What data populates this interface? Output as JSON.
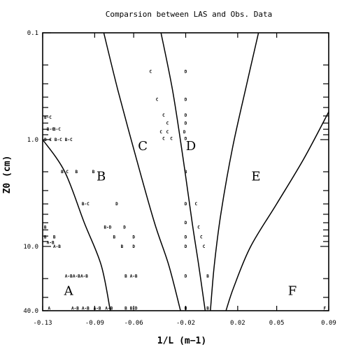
{
  "chart_data": {
    "type": "scatter",
    "title": "Comparsion between LAS and Obs. Data",
    "xlabel": "1/L (m−1)",
    "ylabel": "Z0 (cm)",
    "x_ticks": [
      {
        "value": -0.13,
        "label": "-0.13"
      },
      {
        "value": -0.09,
        "label": "-0.09"
      },
      {
        "value": -0.06,
        "label": "-0.06"
      },
      {
        "value": -0.02,
        "label": "-0.02"
      },
      {
        "value": 0.02,
        "label": "0.02"
      },
      {
        "value": 0.05,
        "label": "0.05"
      },
      {
        "value": 0.09,
        "label": "0.09"
      }
    ],
    "y_ticks": [
      {
        "value": 0.1,
        "label": "0.1"
      },
      {
        "value": 1.0,
        "label": "1.0"
      },
      {
        "value": 10.0,
        "label": "10.0"
      },
      {
        "value": 40.0,
        "label": "40.0"
      }
    ],
    "xlim": [
      -0.13,
      0.09
    ],
    "ylim": [
      0.1,
      40.0
    ],
    "y_scale": "log",
    "regions": [
      {
        "label": "A",
        "x": -0.11,
        "y": 26.0
      },
      {
        "label": "B",
        "x": -0.085,
        "y": 2.2
      },
      {
        "label": "C",
        "x": -0.053,
        "y": 1.15
      },
      {
        "label": "D",
        "x": -0.016,
        "y": 1.15
      },
      {
        "label": "E",
        "x": 0.034,
        "y": 2.2
      },
      {
        "label": "F",
        "x": 0.062,
        "y": 26.0
      }
    ],
    "boundaries": [
      {
        "name": "A-B",
        "points": [
          [
            -0.13,
            1.0
          ],
          [
            -0.113,
            2.0
          ],
          [
            -0.098,
            6.0
          ],
          [
            -0.085,
            15.0
          ],
          [
            -0.078,
            40.0
          ]
        ]
      },
      {
        "name": "B-C",
        "points": [
          [
            -0.083,
            0.1
          ],
          [
            -0.072,
            0.35
          ],
          [
            -0.058,
            1.5
          ],
          [
            -0.044,
            6.0
          ],
          [
            -0.033,
            15.0
          ],
          [
            -0.024,
            40.0
          ]
        ]
      },
      {
        "name": "C-D",
        "points": [
          [
            -0.039,
            0.1
          ],
          [
            -0.03,
            0.35
          ],
          [
            -0.022,
            1.5
          ],
          [
            -0.015,
            6.0
          ],
          [
            -0.01,
            15.0
          ],
          [
            -0.005,
            40.0
          ]
        ]
      },
      {
        "name": "D-E",
        "points": [
          [
            0.036,
            0.1
          ],
          [
            0.027,
            0.3
          ],
          [
            0.016,
            1.2
          ],
          [
            0.007,
            5.0
          ],
          [
            0.002,
            15.0
          ],
          [
            -0.001,
            40.0
          ]
        ]
      },
      {
        "name": "E-F",
        "points": [
          [
            0.09,
            0.55
          ],
          [
            0.071,
            1.5
          ],
          [
            0.05,
            4.0
          ],
          [
            0.03,
            10.0
          ],
          [
            0.017,
            24.0
          ],
          [
            0.011,
            40.0
          ]
        ]
      }
    ],
    "points": [
      {
        "label": "C",
        "x": -0.047,
        "y": 0.23
      },
      {
        "label": "D",
        "x": -0.02,
        "y": 0.23
      },
      {
        "label": "C",
        "x": -0.042,
        "y": 0.42
      },
      {
        "label": "D",
        "x": -0.02,
        "y": 0.42
      },
      {
        "label": "C",
        "x": -0.037,
        "y": 0.59
      },
      {
        "label": "D",
        "x": -0.02,
        "y": 0.59
      },
      {
        "label": "C",
        "x": -0.034,
        "y": 0.7
      },
      {
        "label": "D",
        "x": -0.02,
        "y": 0.7
      },
      {
        "label": "C",
        "x": -0.039,
        "y": 0.85
      },
      {
        "label": "C",
        "x": -0.034,
        "y": 0.85
      },
      {
        "label": "D",
        "x": -0.021,
        "y": 0.85
      },
      {
        "label": "C",
        "x": -0.037,
        "y": 0.98
      },
      {
        "label": "C",
        "x": -0.031,
        "y": 0.98
      },
      {
        "label": "D",
        "x": -0.02,
        "y": 0.98
      },
      {
        "label": "B-C",
        "x": -0.126,
        "y": 0.62
      },
      {
        "label": "B-C",
        "x": -0.124,
        "y": 0.8
      },
      {
        "label": "B-C",
        "x": -0.119,
        "y": 0.8
      },
      {
        "label": "B-C",
        "x": -0.126,
        "y": 1.0
      },
      {
        "label": "B-C",
        "x": -0.118,
        "y": 1.0
      },
      {
        "label": "B-C",
        "x": -0.11,
        "y": 1.0
      },
      {
        "label": "B-C",
        "x": -0.113,
        "y": 2.0
      },
      {
        "label": "B",
        "x": -0.104,
        "y": 2.0
      },
      {
        "label": "B",
        "x": -0.091,
        "y": 2.0
      },
      {
        "label": "B",
        "x": -0.02,
        "y": 2.0
      },
      {
        "label": "B-C",
        "x": -0.097,
        "y": 4.0
      },
      {
        "label": "D",
        "x": -0.073,
        "y": 4.0
      },
      {
        "label": "D",
        "x": -0.02,
        "y": 4.0
      },
      {
        "label": "C",
        "x": -0.012,
        "y": 4.0
      },
      {
        "label": "B",
        "x": -0.128,
        "y": 6.6
      },
      {
        "label": "B-D",
        "x": -0.08,
        "y": 6.6
      },
      {
        "label": "D",
        "x": -0.067,
        "y": 6.6
      },
      {
        "label": "D",
        "x": -0.02,
        "y": 6.0
      },
      {
        "label": "C",
        "x": -0.01,
        "y": 6.6
      },
      {
        "label": "B",
        "x": -0.128,
        "y": 8.2
      },
      {
        "label": "B",
        "x": -0.121,
        "y": 8.2
      },
      {
        "label": "B",
        "x": -0.075,
        "y": 8.2
      },
      {
        "label": "D",
        "x": -0.06,
        "y": 8.2
      },
      {
        "label": "D",
        "x": -0.02,
        "y": 8.2
      },
      {
        "label": "C",
        "x": -0.008,
        "y": 8.2
      },
      {
        "label": "A-B",
        "x": -0.124,
        "y": 9.2
      },
      {
        "label": "A-B",
        "x": -0.119,
        "y": 10.0
      },
      {
        "label": "B",
        "x": -0.069,
        "y": 10.0
      },
      {
        "label": "D",
        "x": -0.06,
        "y": 10.0
      },
      {
        "label": "D",
        "x": -0.02,
        "y": 10.0
      },
      {
        "label": "C",
        "x": -0.006,
        "y": 10.0
      },
      {
        "label": "A-B",
        "x": -0.11,
        "y": 19.0
      },
      {
        "label": "A-B",
        "x": -0.104,
        "y": 19.0
      },
      {
        "label": "A-B",
        "x": -0.098,
        "y": 19.0
      },
      {
        "label": "B",
        "x": -0.066,
        "y": 19.0
      },
      {
        "label": "A-B",
        "x": -0.06,
        "y": 19.0
      },
      {
        "label": "D",
        "x": -0.02,
        "y": 19.0
      },
      {
        "label": "B",
        "x": -0.003,
        "y": 19.0
      },
      {
        "label": "A",
        "x": -0.125,
        "y": 38.0
      },
      {
        "label": "A-B",
        "x": -0.105,
        "y": 38.0
      },
      {
        "label": "A-B",
        "x": -0.097,
        "y": 38.0
      },
      {
        "label": "A-B",
        "x": -0.088,
        "y": 38.0
      },
      {
        "label": "A-B",
        "x": -0.079,
        "y": 38.0
      },
      {
        "label": "B",
        "x": -0.066,
        "y": 38.0
      },
      {
        "label": "B-D",
        "x": -0.06,
        "y": 38.0
      },
      {
        "label": "B",
        "x": -0.02,
        "y": 38.0
      },
      {
        "label": "B",
        "x": -0.003,
        "y": 38.0
      },
      {
        "label": "F",
        "x": 0.087,
        "y": 38.0
      }
    ],
    "grid": false,
    "legend": "none"
  }
}
